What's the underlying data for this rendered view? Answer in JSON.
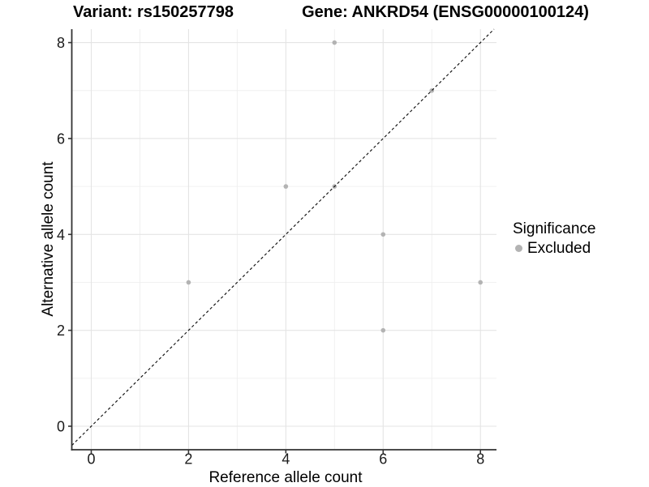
{
  "titles": {
    "variant": "Variant: rs150257798",
    "gene": "Gene: ANKRD54 (ENSG00000100124)"
  },
  "axes": {
    "x_label": "Reference allele count",
    "y_label": "Alternative allele count"
  },
  "legend": {
    "title": "Significance",
    "items": [
      {
        "label": "Excluded",
        "color": "#b3b3b3"
      }
    ]
  },
  "chart_data": {
    "type": "scatter",
    "xlabel": "Reference allele count",
    "ylabel": "Alternative allele count",
    "xlim": [
      -0.4,
      8.33
    ],
    "ylim": [
      -0.49,
      8.28
    ],
    "x_ticks": [
      0,
      2,
      4,
      6,
      8
    ],
    "y_ticks": [
      0,
      2,
      4,
      6,
      8
    ],
    "x_minor": [
      1,
      3,
      5,
      7
    ],
    "y_minor": [
      1,
      3,
      5,
      7
    ],
    "grid": true,
    "legend_position": "right",
    "series": [
      {
        "name": "Excluded",
        "color": "#b3b3b3",
        "points": [
          [
            5,
            8
          ],
          [
            7,
            7
          ],
          [
            4,
            5
          ],
          [
            5,
            5
          ],
          [
            6,
            4
          ],
          [
            2,
            3
          ],
          [
            8,
            3
          ],
          [
            6,
            2
          ]
        ]
      }
    ],
    "reference_line": {
      "slope": 1,
      "intercept": 0,
      "style": "dashed",
      "color": "#111111"
    },
    "style": {
      "background": "#ffffff",
      "grid_major": "#e4e4e4",
      "grid_minor": "#efefef",
      "axis_line": "#333333",
      "tick_label": "#1a1a1a",
      "point_radius": 2.8
    }
  }
}
